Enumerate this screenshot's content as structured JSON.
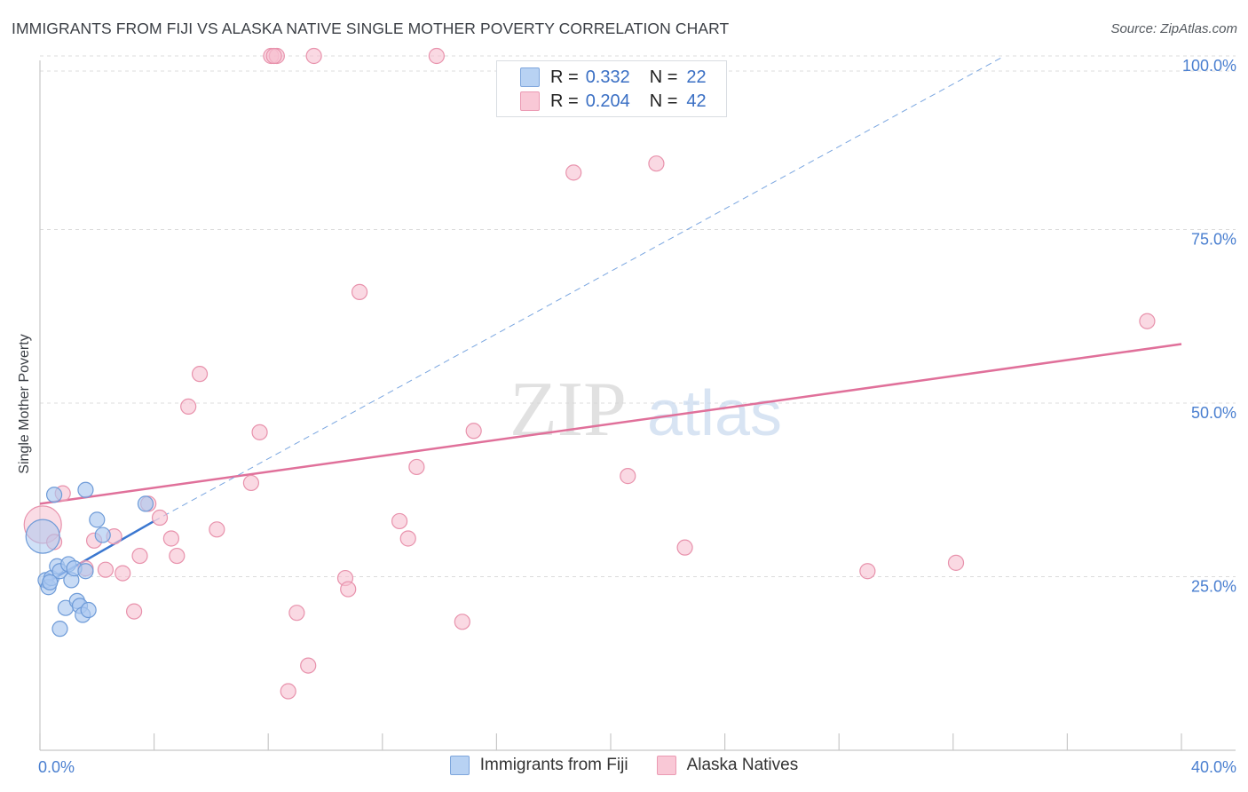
{
  "header": {
    "title": "IMMIGRANTS FROM FIJI VS ALASKA NATIVE SINGLE MOTHER POVERTY CORRELATION CHART",
    "source": "Source: ZipAtlas.com"
  },
  "watermark": {
    "part1": "ZIP",
    "part2": "atlas"
  },
  "legend_top": {
    "rows": [
      {
        "r_label": "R =",
        "r_value": "0.332",
        "n_label": "N =",
        "n_value": "22"
      },
      {
        "r_label": "R =",
        "r_value": "0.204",
        "n_label": "N =",
        "n_value": "42"
      }
    ]
  },
  "legend_bottom": {
    "fiji": "Immigrants from Fiji",
    "alaska": "Alaska Natives"
  },
  "colors": {
    "fiji_fill": "#aac8f0",
    "fiji_stroke": "#6e9bd8",
    "fiji_line": "#3a77d0",
    "alaska_fill": "#f6c0d0",
    "alaska_stroke": "#e892ac",
    "alaska_line": "#e0709a",
    "tick_label": "#4a7fd0",
    "grid": "#dcdcdc"
  },
  "chart_data": {
    "type": "scatter",
    "title": "IMMIGRANTS FROM FIJI VS ALASKA NATIVE SINGLE MOTHER POVERTY CORRELATION CHART",
    "xlabel": "",
    "ylabel": "Single Mother Poverty",
    "xlim": [
      0,
      40
    ],
    "ylim": [
      0,
      100
    ],
    "x_tick_labels": [
      {
        "value": 0,
        "label": "0.0%"
      },
      {
        "value": 40,
        "label": "40.0%"
      }
    ],
    "y_tick_labels": [
      {
        "value": 25,
        "label": "25.0%"
      },
      {
        "value": 50,
        "label": "50.0%"
      },
      {
        "value": 75,
        "label": "75.0%"
      },
      {
        "value": 100,
        "label": "100.0%"
      }
    ],
    "series": [
      {
        "name": "Immigrants from Fiji",
        "r": 0.332,
        "n": 22,
        "points": [
          [
            0.1,
            30.8,
            "big"
          ],
          [
            0.2,
            24.5
          ],
          [
            0.3,
            23.5
          ],
          [
            0.4,
            24.8
          ],
          [
            0.5,
            36.8
          ],
          [
            0.6,
            26.5
          ],
          [
            0.7,
            25.8
          ],
          [
            0.7,
            17.5
          ],
          [
            0.9,
            20.5
          ],
          [
            1.0,
            26.8
          ],
          [
            1.1,
            24.5
          ],
          [
            1.2,
            26.2
          ],
          [
            1.3,
            21.5
          ],
          [
            1.4,
            20.8
          ],
          [
            1.5,
            19.5
          ],
          [
            1.6,
            37.5
          ],
          [
            1.6,
            25.8
          ],
          [
            1.7,
            20.2
          ],
          [
            2.0,
            33.2
          ],
          [
            2.2,
            31.0
          ],
          [
            3.7,
            35.5
          ],
          [
            0.35,
            24.2
          ]
        ],
        "trend": {
          "x0": 0.0,
          "y0": 23.6,
          "x1": 4.0,
          "y1": 33.0,
          "dashed_to": {
            "x": 33.8,
            "y": 100.0
          }
        }
      },
      {
        "name": "Alaska Natives",
        "r": 0.204,
        "n": 42,
        "points": [
          [
            0.1,
            32.5,
            "big"
          ],
          [
            0.5,
            30.0
          ],
          [
            0.8,
            37.0
          ],
          [
            1.6,
            26.2
          ],
          [
            1.9,
            30.2
          ],
          [
            2.3,
            26.0
          ],
          [
            2.6,
            30.8
          ],
          [
            2.9,
            25.5
          ],
          [
            3.3,
            20.0
          ],
          [
            3.5,
            28.0
          ],
          [
            3.8,
            35.5
          ],
          [
            4.2,
            33.5
          ],
          [
            4.6,
            30.5
          ],
          [
            4.8,
            28.0
          ],
          [
            5.2,
            49.5
          ],
          [
            5.6,
            54.2
          ],
          [
            6.2,
            31.8
          ],
          [
            7.4,
            38.5
          ],
          [
            7.7,
            45.8
          ],
          [
            8.1,
            100.0
          ],
          [
            8.3,
            100.0
          ],
          [
            8.7,
            8.5
          ],
          [
            9.0,
            19.8
          ],
          [
            9.4,
            12.2
          ],
          [
            9.6,
            100.0
          ],
          [
            10.7,
            24.8
          ],
          [
            10.8,
            23.2
          ],
          [
            11.2,
            66.0
          ],
          [
            12.6,
            33.0
          ],
          [
            12.9,
            30.5
          ],
          [
            13.2,
            40.8
          ],
          [
            13.9,
            100.0
          ],
          [
            14.8,
            18.5
          ],
          [
            15.2,
            46.0
          ],
          [
            18.7,
            83.2
          ],
          [
            20.6,
            39.5
          ],
          [
            21.6,
            84.5
          ],
          [
            22.6,
            29.2
          ],
          [
            29.0,
            25.8
          ],
          [
            32.1,
            27.0
          ],
          [
            38.8,
            61.8
          ],
          [
            8.2,
            100.0
          ]
        ],
        "trend": {
          "x0": 0.0,
          "y0": 35.5,
          "x1": 40.0,
          "y1": 58.5
        }
      }
    ]
  }
}
